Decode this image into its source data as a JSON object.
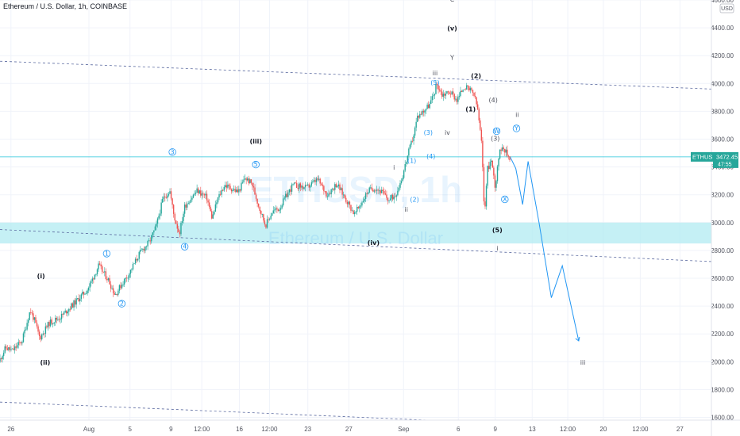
{
  "legend": {
    "symbol_line": "Ethereum / U.S. Dollar, 1h, COINBASE"
  },
  "currency_badge": "USD",
  "price_tag": {
    "symbol": "ETHUSD",
    "price": "3472.45",
    "countdown": "47:55"
  },
  "watermark": {
    "main": "ETHUSD, 1h",
    "sub": "Ethereum / U.S. Dollar"
  },
  "colors": {
    "up": "#26a69a",
    "down": "#ef5350",
    "wave": "#131722",
    "wave_blue": "#2196f3",
    "zone": "#b2ebf2",
    "trendline": "#5b6aa0",
    "projection": "#2196f3",
    "price_line": "#26c6da"
  },
  "chart_data": {
    "type": "candlestick",
    "title": "Ethereum / U.S. Dollar, 1h, COINBASE",
    "ylim": [
      1580,
      4600
    ],
    "y_ticks": [
      1600,
      1800,
      2000,
      2200,
      2400,
      2600,
      2800,
      3000,
      3200,
      3400,
      3600,
      3800,
      4000,
      4200,
      4400,
      4600
    ],
    "y_tick_labels": [
      "1600.00",
      "1800.00",
      "2000.00",
      "2200.00",
      "2400.00",
      "2600.00",
      "2800.00",
      "3000.00",
      "3200.00",
      "3400.00",
      "3600.00",
      "3800.00",
      "4000.00",
      "4200.00",
      "4400.00",
      "4600.00"
    ],
    "x_ticks": [
      {
        "label": "26",
        "t": 0.8
      },
      {
        "label": "Aug",
        "t": 6.5
      },
      {
        "label": "5",
        "t": 9.5
      },
      {
        "label": "9",
        "t": 12.5
      },
      {
        "label": "12:00",
        "t": 14.75
      },
      {
        "label": "16",
        "t": 17.5
      },
      {
        "label": "12:00",
        "t": 19.7
      },
      {
        "label": "23",
        "t": 22.5
      },
      {
        "label": "27",
        "t": 25.5
      },
      {
        "label": "Sep",
        "t": 29.5
      },
      {
        "label": "6",
        "t": 33.5
      },
      {
        "label": "9",
        "t": 36.2
      },
      {
        "label": "13",
        "t": 38.9
      },
      {
        "label": "12:00",
        "t": 41.5
      },
      {
        "label": "20",
        "t": 44.1
      },
      {
        "label": "12:00",
        "t": 46.8
      },
      {
        "label": "27",
        "t": 49.7
      }
    ],
    "price_path": [
      [
        0,
        2000
      ],
      [
        0.5,
        2100
      ],
      [
        1,
        2080
      ],
      [
        1.7,
        2150
      ],
      [
        2.3,
        2370
      ],
      [
        2.6,
        2300
      ],
      [
        3,
        2170
      ],
      [
        3.7,
        2280
      ],
      [
        4.5,
        2320
      ],
      [
        5.5,
        2420
      ],
      [
        6.5,
        2520
      ],
      [
        7.3,
        2690
      ],
      [
        8,
        2590
      ],
      [
        8.5,
        2480
      ],
      [
        9,
        2560
      ],
      [
        9.5,
        2630
      ],
      [
        10.3,
        2780
      ],
      [
        11,
        2860
      ],
      [
        11.5,
        2970
      ],
      [
        12,
        3170
      ],
      [
        12.5,
        3230
      ],
      [
        12.8,
        3050
      ],
      [
        13.2,
        2920
      ],
      [
        13.6,
        3120
      ],
      [
        14.5,
        3230
      ],
      [
        15.2,
        3180
      ],
      [
        15.6,
        3030
      ],
      [
        16,
        3170
      ],
      [
        16.5,
        3270
      ],
      [
        17.5,
        3220
      ],
      [
        18,
        3320
      ],
      [
        18.5,
        3280
      ],
      [
        19,
        3120
      ],
      [
        19.5,
        2980
      ],
      [
        20,
        3080
      ],
      [
        20.5,
        3100
      ],
      [
        21,
        3190
      ],
      [
        21.5,
        3270
      ],
      [
        22.5,
        3250
      ],
      [
        23.3,
        3310
      ],
      [
        24,
        3200
      ],
      [
        24.7,
        3280
      ],
      [
        25.3,
        3180
      ],
      [
        26,
        3060
      ],
      [
        26.5,
        3140
      ],
      [
        27,
        3230
      ],
      [
        27.5,
        3250
      ],
      [
        28,
        3220
      ],
      [
        28.5,
        3160
      ],
      [
        29,
        3200
      ],
      [
        29.5,
        3330
      ],
      [
        29.8,
        3450
      ],
      [
        30,
        3520
      ],
      [
        30.3,
        3620
      ],
      [
        30.6,
        3760
      ],
      [
        31,
        3800
      ],
      [
        31.5,
        3850
      ],
      [
        31.8,
        3920
      ],
      [
        32,
        4000
      ],
      [
        32.4,
        3920
      ],
      [
        33,
        3940
      ],
      [
        33.5,
        3880
      ],
      [
        34,
        3980
      ],
      [
        34.7,
        3930
      ],
      [
        35,
        3820
      ],
      [
        35.3,
        3560
      ],
      [
        35.5,
        3050
      ],
      [
        35.7,
        3380
      ],
      [
        36,
        3450
      ],
      [
        36.3,
        3250
      ],
      [
        36.5,
        3460
      ],
      [
        36.8,
        3560
      ],
      [
        37.1,
        3500
      ],
      [
        37.3,
        3470
      ]
    ],
    "projection_path": [
      [
        37.3,
        3470
      ],
      [
        37.7,
        3390
      ],
      [
        38.2,
        3130
      ],
      [
        38.6,
        3440
      ],
      [
        39.4,
        3000
      ],
      [
        40.3,
        2460
      ],
      [
        41.1,
        2690
      ],
      [
        42.3,
        2150
      ]
    ],
    "resistance_zone": [
      2850,
      3000
    ],
    "last_price": 3472.45,
    "trendlines": [
      {
        "name": "upper-channel",
        "from": [
          0,
          4160
        ],
        "to": [
          52,
          3960
        ]
      },
      {
        "name": "mid-channel",
        "from": [
          0,
          2950
        ],
        "to": [
          52,
          2720
        ]
      },
      {
        "name": "lower-channel",
        "from": [
          0,
          1710
        ],
        "to": [
          38.5,
          1550
        ]
      }
    ],
    "wave_labels": [
      {
        "text": "C",
        "t": 33.05,
        "p": 4590,
        "style": "plain"
      },
      {
        "text": "(v)",
        "t": 33.05,
        "p": 4380,
        "style": "bold"
      },
      {
        "text": "Y",
        "t": 33.05,
        "p": 4170,
        "style": "plain"
      },
      {
        "text": "iii",
        "t": 31.8,
        "p": 4060,
        "style": "plain"
      },
      {
        "text": "(5)",
        "t": 31.8,
        "p": 3990,
        "style": "blue"
      },
      {
        "text": "(2)",
        "t": 34.8,
        "p": 4040,
        "style": "bold"
      },
      {
        "text": "(1)",
        "t": 34.4,
        "p": 3800,
        "style": "bold"
      },
      {
        "text": "(4)",
        "t": 36.05,
        "p": 3865,
        "style": "plain"
      },
      {
        "text": "iv",
        "t": 32.7,
        "p": 3630,
        "style": "plain"
      },
      {
        "text": "(3)",
        "t": 31.3,
        "p": 3630,
        "style": "blue"
      },
      {
        "text": "(1)",
        "t": 30.1,
        "p": 3430,
        "style": "blue"
      },
      {
        "text": "(4)",
        "t": 31.5,
        "p": 3460,
        "style": "blue"
      },
      {
        "text": "i",
        "t": 28.8,
        "p": 3380,
        "style": "plain"
      },
      {
        "text": "(2)",
        "t": 30.3,
        "p": 3150,
        "style": "blue"
      },
      {
        "text": "ii",
        "t": 29.7,
        "p": 3080,
        "style": "plain"
      },
      {
        "text": "(iii)",
        "t": 18.7,
        "p": 3570,
        "style": "bold"
      },
      {
        "text": "3",
        "t": 12.6,
        "p": 3490,
        "style": "circle"
      },
      {
        "text": "5",
        "t": 18.7,
        "p": 3400,
        "style": "circle"
      },
      {
        "text": "4",
        "t": 13.5,
        "p": 2810,
        "style": "circle"
      },
      {
        "text": "(iv)",
        "t": 27.3,
        "p": 2840,
        "style": "bold"
      },
      {
        "text": "1",
        "t": 7.8,
        "p": 2760,
        "style": "circle"
      },
      {
        "text": "2",
        "t": 8.9,
        "p": 2400,
        "style": "circle"
      },
      {
        "text": "(i)",
        "t": 3.0,
        "p": 2600,
        "style": "bold"
      },
      {
        "text": "(ii)",
        "t": 3.3,
        "p": 1980,
        "style": "bold"
      },
      {
        "text": "W",
        "t": 36.3,
        "p": 3640,
        "style": "circle"
      },
      {
        "text": "(3)",
        "t": 36.2,
        "p": 3590,
        "style": "plain"
      },
      {
        "text": "ii",
        "t": 37.8,
        "p": 3760,
        "style": "plain"
      },
      {
        "text": "Y",
        "t": 37.75,
        "p": 3660,
        "style": "circle"
      },
      {
        "text": "X",
        "t": 36.9,
        "p": 3150,
        "style": "circle"
      },
      {
        "text": "(5)",
        "t": 36.35,
        "p": 2930,
        "style": "bold"
      },
      {
        "text": "i",
        "t": 36.35,
        "p": 2800,
        "style": "plain"
      },
      {
        "text": "iii",
        "t": 42.6,
        "p": 1980,
        "style": "plain"
      }
    ]
  }
}
